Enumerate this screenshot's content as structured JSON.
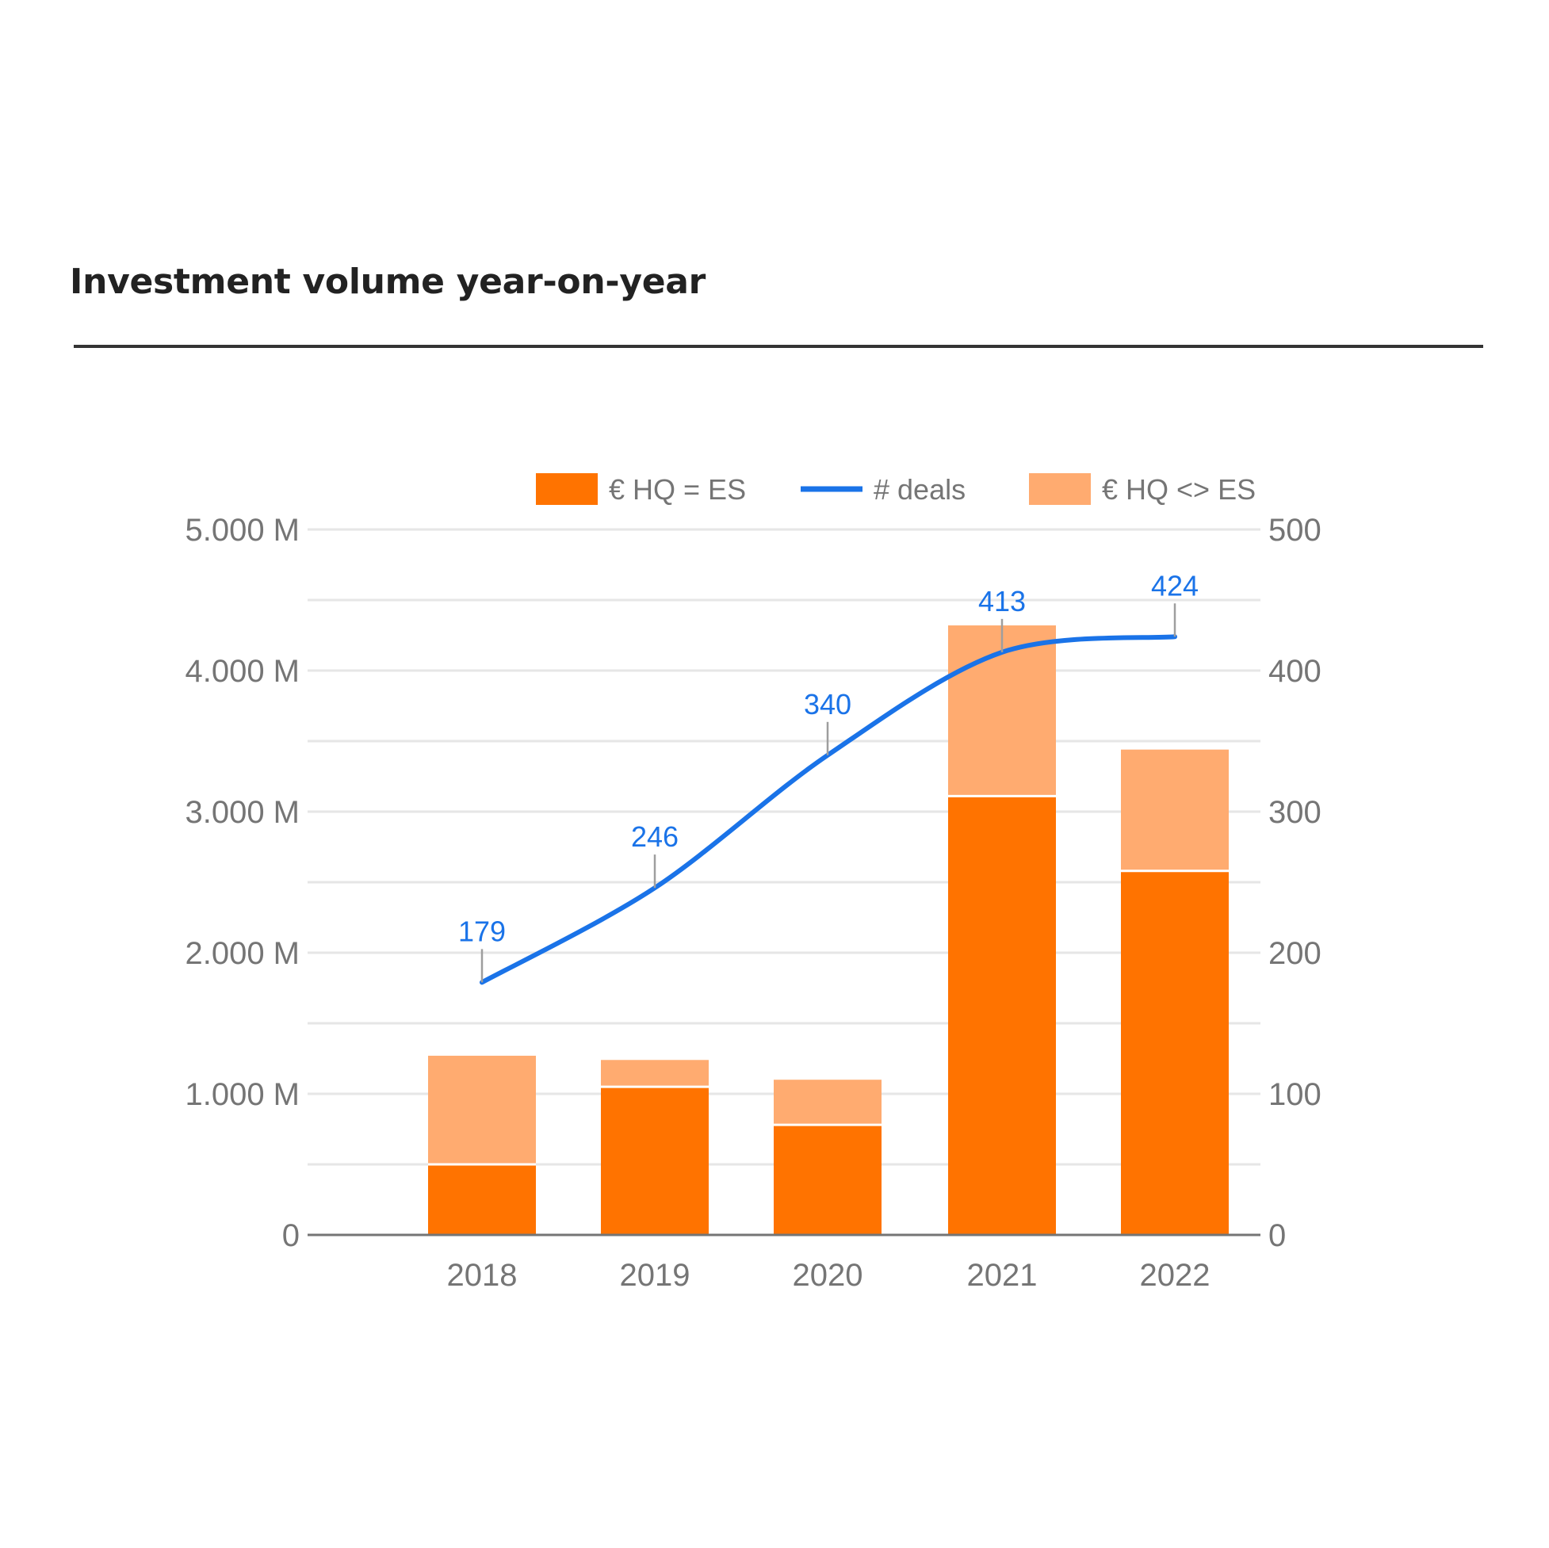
{
  "page": {
    "title": "Investment volume year-on-year"
  },
  "chart_data": {
    "type": "bar",
    "stacked": true,
    "categories": [
      "2018",
      "2019",
      "2020",
      "2021",
      "2022"
    ],
    "series": [
      {
        "name": "€ HQ = ES",
        "type": "bar",
        "axis": "left",
        "color": "#ff7300",
        "values": [
          500,
          1050,
          780,
          3110,
          2580
        ]
      },
      {
        "name": "€ HQ <> ES",
        "type": "bar",
        "axis": "left",
        "color": "#ffab70",
        "values": [
          770,
          190,
          320,
          1210,
          860
        ]
      },
      {
        "name": "# deals",
        "type": "line",
        "axis": "right",
        "color": "#1a73e8",
        "values": [
          179,
          246,
          340,
          413,
          424
        ],
        "data_labels": [
          "179",
          "246",
          "340",
          "413",
          "424"
        ]
      }
    ],
    "legend": {
      "position": "top",
      "order": [
        "€ HQ = ES",
        "# deals",
        "€ HQ <> ES"
      ]
    },
    "y_left": {
      "range": [
        0,
        5000
      ],
      "ticks": [
        "0",
        "1.000 M",
        "2.000 M",
        "3.000 M",
        "4.000 M",
        "5.000 M"
      ]
    },
    "y_right": {
      "range": [
        0,
        500
      ],
      "ticks": [
        "0",
        "100",
        "200",
        "300",
        "400",
        "500"
      ]
    },
    "grid": true
  }
}
